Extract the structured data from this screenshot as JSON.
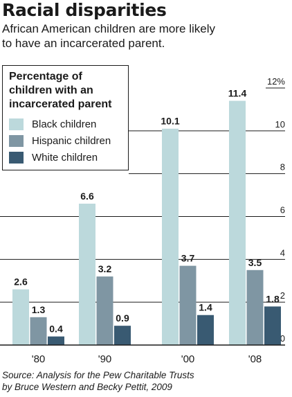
{
  "header": {
    "title": "Racial disparities",
    "subtitle_lines": [
      "African American children are more likely",
      "to have an incarcerated parent."
    ]
  },
  "legend": {
    "title_lines": [
      "Percentage of",
      "children with an",
      "incarcerated parent"
    ]
  },
  "source_lines": [
    "Source: Analysis for the Pew Charitable Trusts",
    "by Bruce Western and Becky Pettit, 2009"
  ],
  "colors": {
    "black": "#bcd9dc",
    "hispanic": "#7f96a3",
    "white": "#395a72",
    "text": "#1a1a1a"
  },
  "chart_data": {
    "type": "bar",
    "categories": [
      "'80",
      "'90",
      "'00",
      "'08"
    ],
    "series": [
      {
        "name": "Black children",
        "values": [
          2.6,
          6.6,
          10.1,
          11.4
        ],
        "labels": [
          "2.6",
          "6.6",
          "10.1",
          "11.4"
        ]
      },
      {
        "name": "Hispanic children",
        "values": [
          1.3,
          3.2,
          3.7,
          3.5
        ],
        "labels": [
          "1.3",
          "3.2",
          "3.7",
          "3.5"
        ]
      },
      {
        "name": "White children",
        "values": [
          0.4,
          0.9,
          1.4,
          1.8
        ],
        "labels": [
          "0.4",
          "0.9",
          "1.4",
          "1.8"
        ]
      }
    ],
    "ylim": [
      0,
      12
    ],
    "yticks": [
      0,
      2,
      4,
      6,
      8,
      10,
      12
    ],
    "ytick_labels": [
      "0",
      "2",
      "4",
      "6",
      "8",
      "10",
      "12%"
    ],
    "grid": true,
    "legend_position": "top-left"
  }
}
